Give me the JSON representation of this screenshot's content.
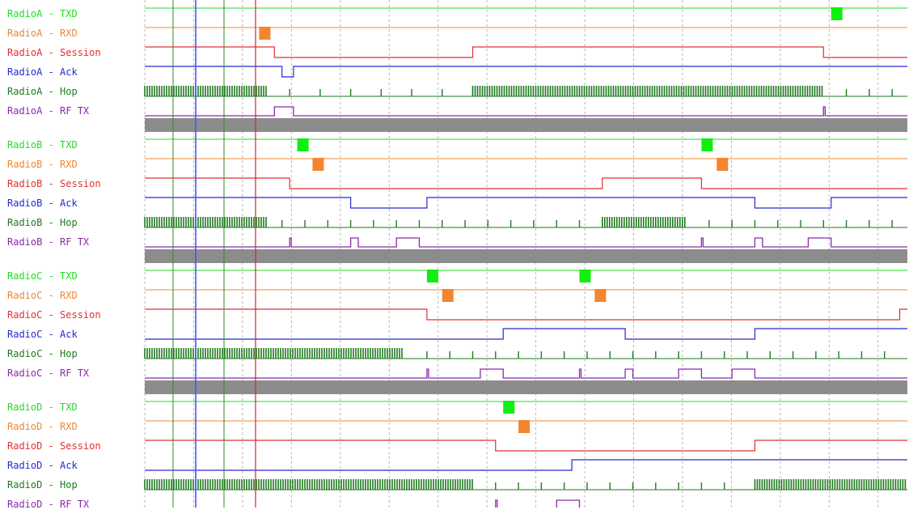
{
  "colors": {
    "txd": "#22dd22",
    "txd_fill": "#11ee11",
    "rxd": "#ee8833",
    "rxd_fill": "#f4852f",
    "session": "#e03030",
    "ack": "#2828d0",
    "hop": "#1f7a1f",
    "rftx": "#8a2aaa",
    "separator": "#8c8c8c",
    "grid": "#b8b8b8",
    "cursor_blue": "#4455ff",
    "cursor_green": "#2e8b2e",
    "cursor_red": "#dd2222"
  },
  "radios": [
    {
      "id": "A",
      "labels": [
        "RadioA - TXD",
        "RadioA - RXD",
        "RadioA - Session",
        "RadioA - Ack",
        "RadioA - Hop",
        "RadioA - RF TX"
      ],
      "txd_pulses": [
        0.9
      ],
      "rxd_pulses": [
        0.15
      ],
      "session": [
        [
          0,
          1
        ],
        [
          0.17,
          0
        ],
        [
          0.43,
          1
        ],
        [
          0.89,
          0
        ]
      ],
      "ack": [
        [
          0,
          1
        ],
        [
          0.18,
          0
        ],
        [
          0.195,
          1
        ]
      ],
      "hop_dense": [
        [
          0,
          0.16
        ],
        [
          0.43,
          0.89
        ]
      ],
      "hop_ticks": [
        0.19,
        0.23,
        0.27,
        0.31,
        0.35,
        0.39,
        0.92,
        0.95,
        0.98
      ],
      "rftx_pulses": [
        [
          0.17,
          0.195
        ],
        [
          0.89,
          0.891
        ]
      ]
    },
    {
      "id": "B",
      "labels": [
        "RadioB - TXD",
        "RadioB - RXD",
        "RadioB - Session",
        "RadioB - Ack",
        "RadioB - Hop",
        "RadioB - RF TX"
      ],
      "txd_pulses": [
        0.2,
        0.73
      ],
      "rxd_pulses": [
        0.22,
        0.75
      ],
      "session": [
        [
          0,
          1
        ],
        [
          0.19,
          0
        ],
        [
          0.6,
          1
        ],
        [
          0.73,
          0
        ]
      ],
      "ack": [
        [
          0,
          1
        ],
        [
          0.27,
          0
        ],
        [
          0.37,
          1
        ],
        [
          0.8,
          0
        ],
        [
          0.9,
          1
        ]
      ],
      "hop_dense": [
        [
          0,
          0.16
        ],
        [
          0.6,
          0.71
        ]
      ],
      "hop_ticks": [
        0.18,
        0.21,
        0.24,
        0.27,
        0.3,
        0.33,
        0.36,
        0.39,
        0.42,
        0.45,
        0.48,
        0.51,
        0.54,
        0.57,
        0.74,
        0.77,
        0.8,
        0.83,
        0.86,
        0.89,
        0.92,
        0.95,
        0.98
      ],
      "rftx_pulses": [
        [
          0.19,
          0.192
        ],
        [
          0.27,
          0.28
        ],
        [
          0.33,
          0.36
        ],
        [
          0.73,
          0.732
        ],
        [
          0.8,
          0.81
        ],
        [
          0.87,
          0.9
        ]
      ]
    },
    {
      "id": "C",
      "labels": [
        "RadioC - TXD",
        "RadioC - RXD",
        "RadioC - Session",
        "RadioC - Ack",
        "RadioC - Hop",
        "RadioC - RF TX"
      ],
      "txd_pulses": [
        0.37,
        0.57
      ],
      "rxd_pulses": [
        0.39,
        0.59
      ],
      "session": [
        [
          0,
          1
        ],
        [
          0.37,
          0
        ],
        [
          0.99,
          1
        ]
      ],
      "ack": [
        [
          0,
          0
        ],
        [
          0.47,
          1
        ],
        [
          0.63,
          0
        ],
        [
          0.8,
          1
        ]
      ],
      "hop_dense": [
        [
          0,
          0.34
        ]
      ],
      "hop_ticks": [
        0.37,
        0.4,
        0.43,
        0.46,
        0.49,
        0.52,
        0.55,
        0.58,
        0.61,
        0.64,
        0.67,
        0.7,
        0.73,
        0.76,
        0.79,
        0.82,
        0.85,
        0.88,
        0.91,
        0.94,
        0.97
      ],
      "rftx_pulses": [
        [
          0.37,
          0.372
        ],
        [
          0.44,
          0.47
        ],
        [
          0.57,
          0.572
        ],
        [
          0.63,
          0.64
        ],
        [
          0.7,
          0.73
        ],
        [
          0.77,
          0.8
        ]
      ]
    },
    {
      "id": "D",
      "labels": [
        "RadioD - TXD",
        "RadioD - RXD",
        "RadioD - Session",
        "RadioD - Ack",
        "RadioD - Hop",
        "RadioD - RF TX"
      ],
      "txd_pulses": [
        0.47
      ],
      "rxd_pulses": [
        0.49
      ],
      "session": [
        [
          0,
          1
        ],
        [
          0.46,
          0
        ],
        [
          0.8,
          1
        ]
      ],
      "ack": [
        [
          0,
          0
        ],
        [
          0.56,
          1
        ]
      ],
      "hop_dense": [
        [
          0,
          0.43
        ],
        [
          0.8,
          1.0
        ]
      ],
      "hop_ticks": [
        0.46,
        0.49,
        0.52,
        0.55,
        0.58,
        0.61,
        0.64,
        0.67,
        0.7,
        0.73,
        0.76
      ],
      "rftx_pulses": [
        [
          0.46,
          0.462
        ],
        [
          0.54,
          0.57
        ]
      ]
    }
  ]
}
